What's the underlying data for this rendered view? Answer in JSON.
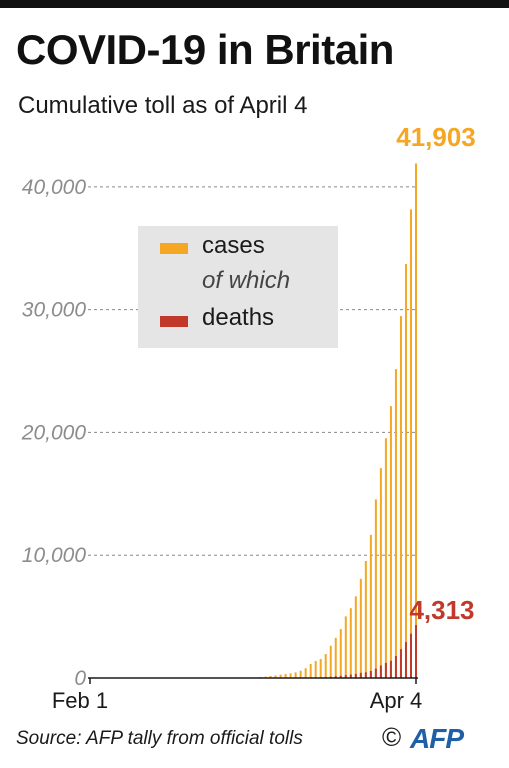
{
  "header": {
    "title": "COVID-19 in Britain",
    "subtitle": "Cumulative toll as of April 4"
  },
  "legend": {
    "cases_label": "cases",
    "note": "of which",
    "deaths_label": "deaths"
  },
  "footer": {
    "source": "Source: AFP tally from official tolls",
    "copyright": "©",
    "logo_text": "AFP"
  },
  "colors": {
    "cases": "#f5a623",
    "deaths": "#c0392b",
    "grid": "#8a8a8a",
    "tick": "#8c8c8c",
    "axis": "#1a1a1a",
    "logo": "#1f5fa8"
  },
  "chart_data": {
    "type": "bar",
    "x_start_label": "Feb 1",
    "x_end_label": "Apr 4",
    "ylim": [
      0,
      43000
    ],
    "yticks": [
      0,
      10000,
      20000,
      30000,
      40000
    ],
    "ytick_labels": [
      "0",
      "10,000",
      "20,000",
      "30,000",
      "40,000"
    ],
    "grid": true,
    "legend_position": "top-left",
    "annotations": {
      "cases_last": "41,903",
      "deaths_last": "4,313"
    },
    "series": [
      {
        "name": "cases",
        "values": [
          2,
          2,
          2,
          2,
          2,
          2,
          2,
          2,
          2,
          3,
          8,
          8,
          8,
          9,
          9,
          9,
          9,
          9,
          9,
          9,
          9,
          9,
          9,
          9,
          9,
          13,
          13,
          13,
          15,
          20,
          23,
          36,
          40,
          51,
          85,
          116,
          164,
          206,
          273,
          321,
          373,
          456,
          590,
          798,
          1140,
          1391,
          1543,
          1950,
          2626,
          3269,
          3983,
          5018,
          5683,
          6650,
          8077,
          9529,
          11658,
          14543,
          17089,
          19522,
          22141,
          25150,
          29474,
          33718,
          38168,
          41903
        ]
      },
      {
        "name": "deaths",
        "values": [
          0,
          0,
          0,
          0,
          0,
          0,
          0,
          0,
          0,
          0,
          0,
          0,
          0,
          0,
          0,
          0,
          0,
          0,
          0,
          0,
          0,
          0,
          0,
          0,
          0,
          0,
          0,
          0,
          0,
          0,
          0,
          0,
          0,
          0,
          0,
          0,
          1,
          1,
          2,
          2,
          3,
          5,
          7,
          10,
          21,
          35,
          55,
          71,
          104,
          144,
          177,
          233,
          281,
          335,
          422,
          465,
          578,
          759,
          1019,
          1228,
          1408,
          1789,
          2352,
          2921,
          3605,
          4313
        ]
      }
    ]
  }
}
